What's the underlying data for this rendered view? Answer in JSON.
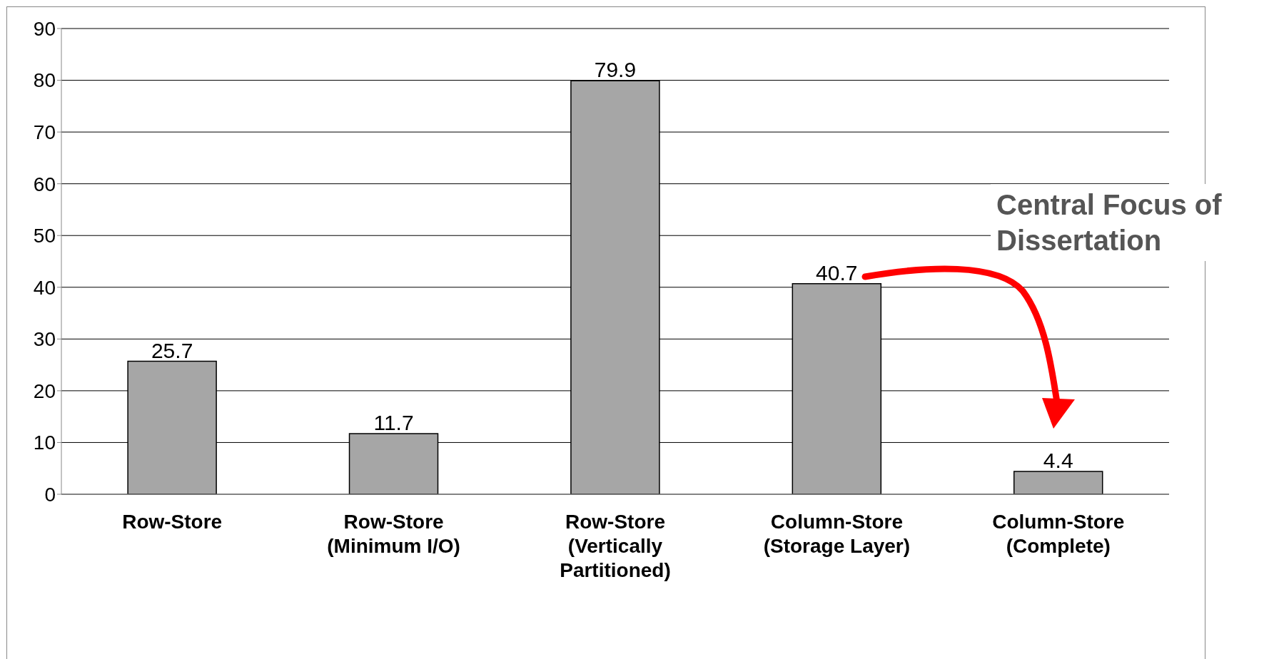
{
  "chart_data": {
    "type": "bar",
    "categories": [
      "Row-Store",
      "Row-Store\n(Minimum I/O)",
      "Row-Store\n(Vertically\nPartitioned)",
      "Column-Store\n(Storage Layer)",
      "Column-Store\n(Complete)"
    ],
    "values": [
      25.7,
      11.7,
      79.9,
      40.7,
      4.4
    ],
    "color": "#a6a6a6",
    "ylim": [
      0,
      90
    ],
    "yticks": [
      0,
      10,
      20,
      30,
      40,
      50,
      60,
      70,
      80,
      90
    ],
    "grid": "y",
    "data_labels": true,
    "annotations": [
      "Central Focus of\nDissertation"
    ]
  }
}
